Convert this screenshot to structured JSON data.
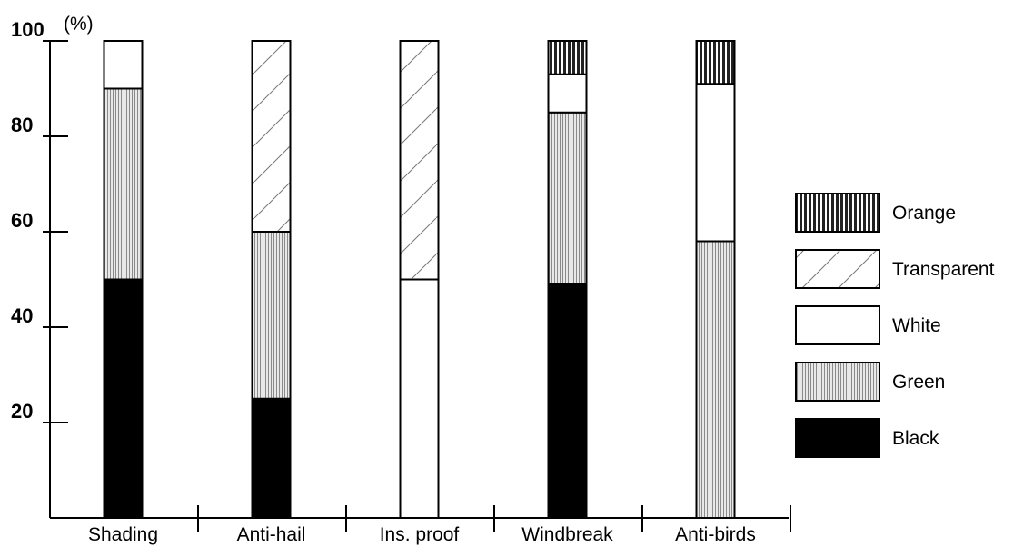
{
  "chart_data": {
    "type": "bar",
    "stacked": true,
    "categories": [
      "Shading",
      "Anti-hail",
      "Ins. proof",
      "Windbreak",
      "Anti-birds"
    ],
    "y_unit": "(%)",
    "ylim": [
      0,
      100
    ],
    "yticks": [
      {
        "value": 20,
        "label": "20"
      },
      {
        "value": 40,
        "label": "40"
      },
      {
        "value": 60,
        "label": "60"
      },
      {
        "value": 80,
        "label": "80"
      },
      {
        "value": 100,
        "label": "100"
      }
    ],
    "grid": false,
    "legend_position": "right",
    "legend_order": [
      "Orange",
      "Transparent",
      "White",
      "Green",
      "Black"
    ],
    "series": [
      {
        "name": "Black",
        "pattern": "solid-black",
        "values": [
          50,
          25,
          0,
          49,
          0
        ]
      },
      {
        "name": "Green",
        "pattern": "fine-vertical-hatch",
        "values": [
          40,
          35,
          0,
          36,
          58
        ]
      },
      {
        "name": "White",
        "pattern": "plain-white",
        "values": [
          10,
          0,
          50,
          8,
          33
        ]
      },
      {
        "name": "Transparent",
        "pattern": "diagonal-lines",
        "values": [
          0,
          40,
          50,
          0,
          0
        ]
      },
      {
        "name": "Orange",
        "pattern": "coarse-vertical-stripes",
        "values": [
          0,
          0,
          0,
          7,
          9
        ]
      }
    ],
    "colors": {
      "Black": "#000000",
      "Green": "#a8a8a8",
      "White": "#ffffff",
      "Transparent": "#ffffff",
      "Orange": "#555555"
    }
  }
}
